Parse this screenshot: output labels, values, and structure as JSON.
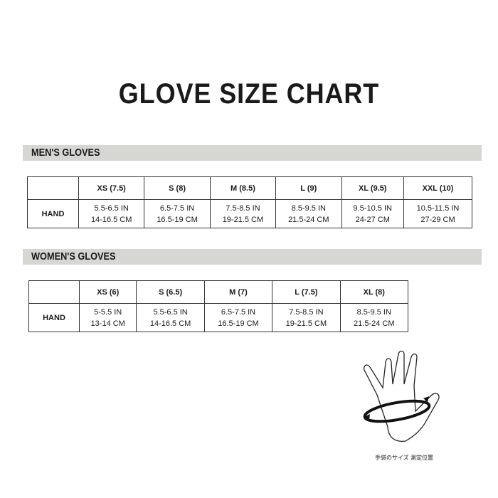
{
  "title": "GLOVE SIZE CHART",
  "mens": {
    "heading": "MEN'S GLOVES",
    "row_label": "HAND",
    "sizes": [
      "XS (7.5)",
      "S (8)",
      "M (8.5)",
      "L (9)",
      "XL (9.5)",
      "XXL (10)"
    ],
    "in": [
      "5.5-6.5 IN",
      "6.5-7.5 IN",
      "7.5-8.5 IN",
      "8.5-9.5 IN",
      "9.5-10.5 IN",
      "10.5-11.5 IN"
    ],
    "cm": [
      "14-16.5 CM",
      "16.5-19 CM",
      "19-21.5 CM",
      "21.5-24 CM",
      "24-27 CM",
      "27-29 CM"
    ]
  },
  "womens": {
    "heading": "WOMEN'S GLOVES",
    "row_label": "HAND",
    "sizes": [
      "XS (6)",
      "S (6.5)",
      "M (7)",
      "L (7.5)",
      "XL (8)"
    ],
    "in": [
      "5-5.5 IN",
      "5.5-6.5 IN",
      "6.5-7.5 IN",
      "7.5-8.5 IN",
      "8.5-9.5 IN"
    ],
    "cm": [
      "13-14 CM",
      "14-16.5 CM",
      "16.5-19 CM",
      "19-21.5 CM",
      "21.5-24 CM"
    ]
  },
  "caption": "手袋のサイズ 測定位置"
}
